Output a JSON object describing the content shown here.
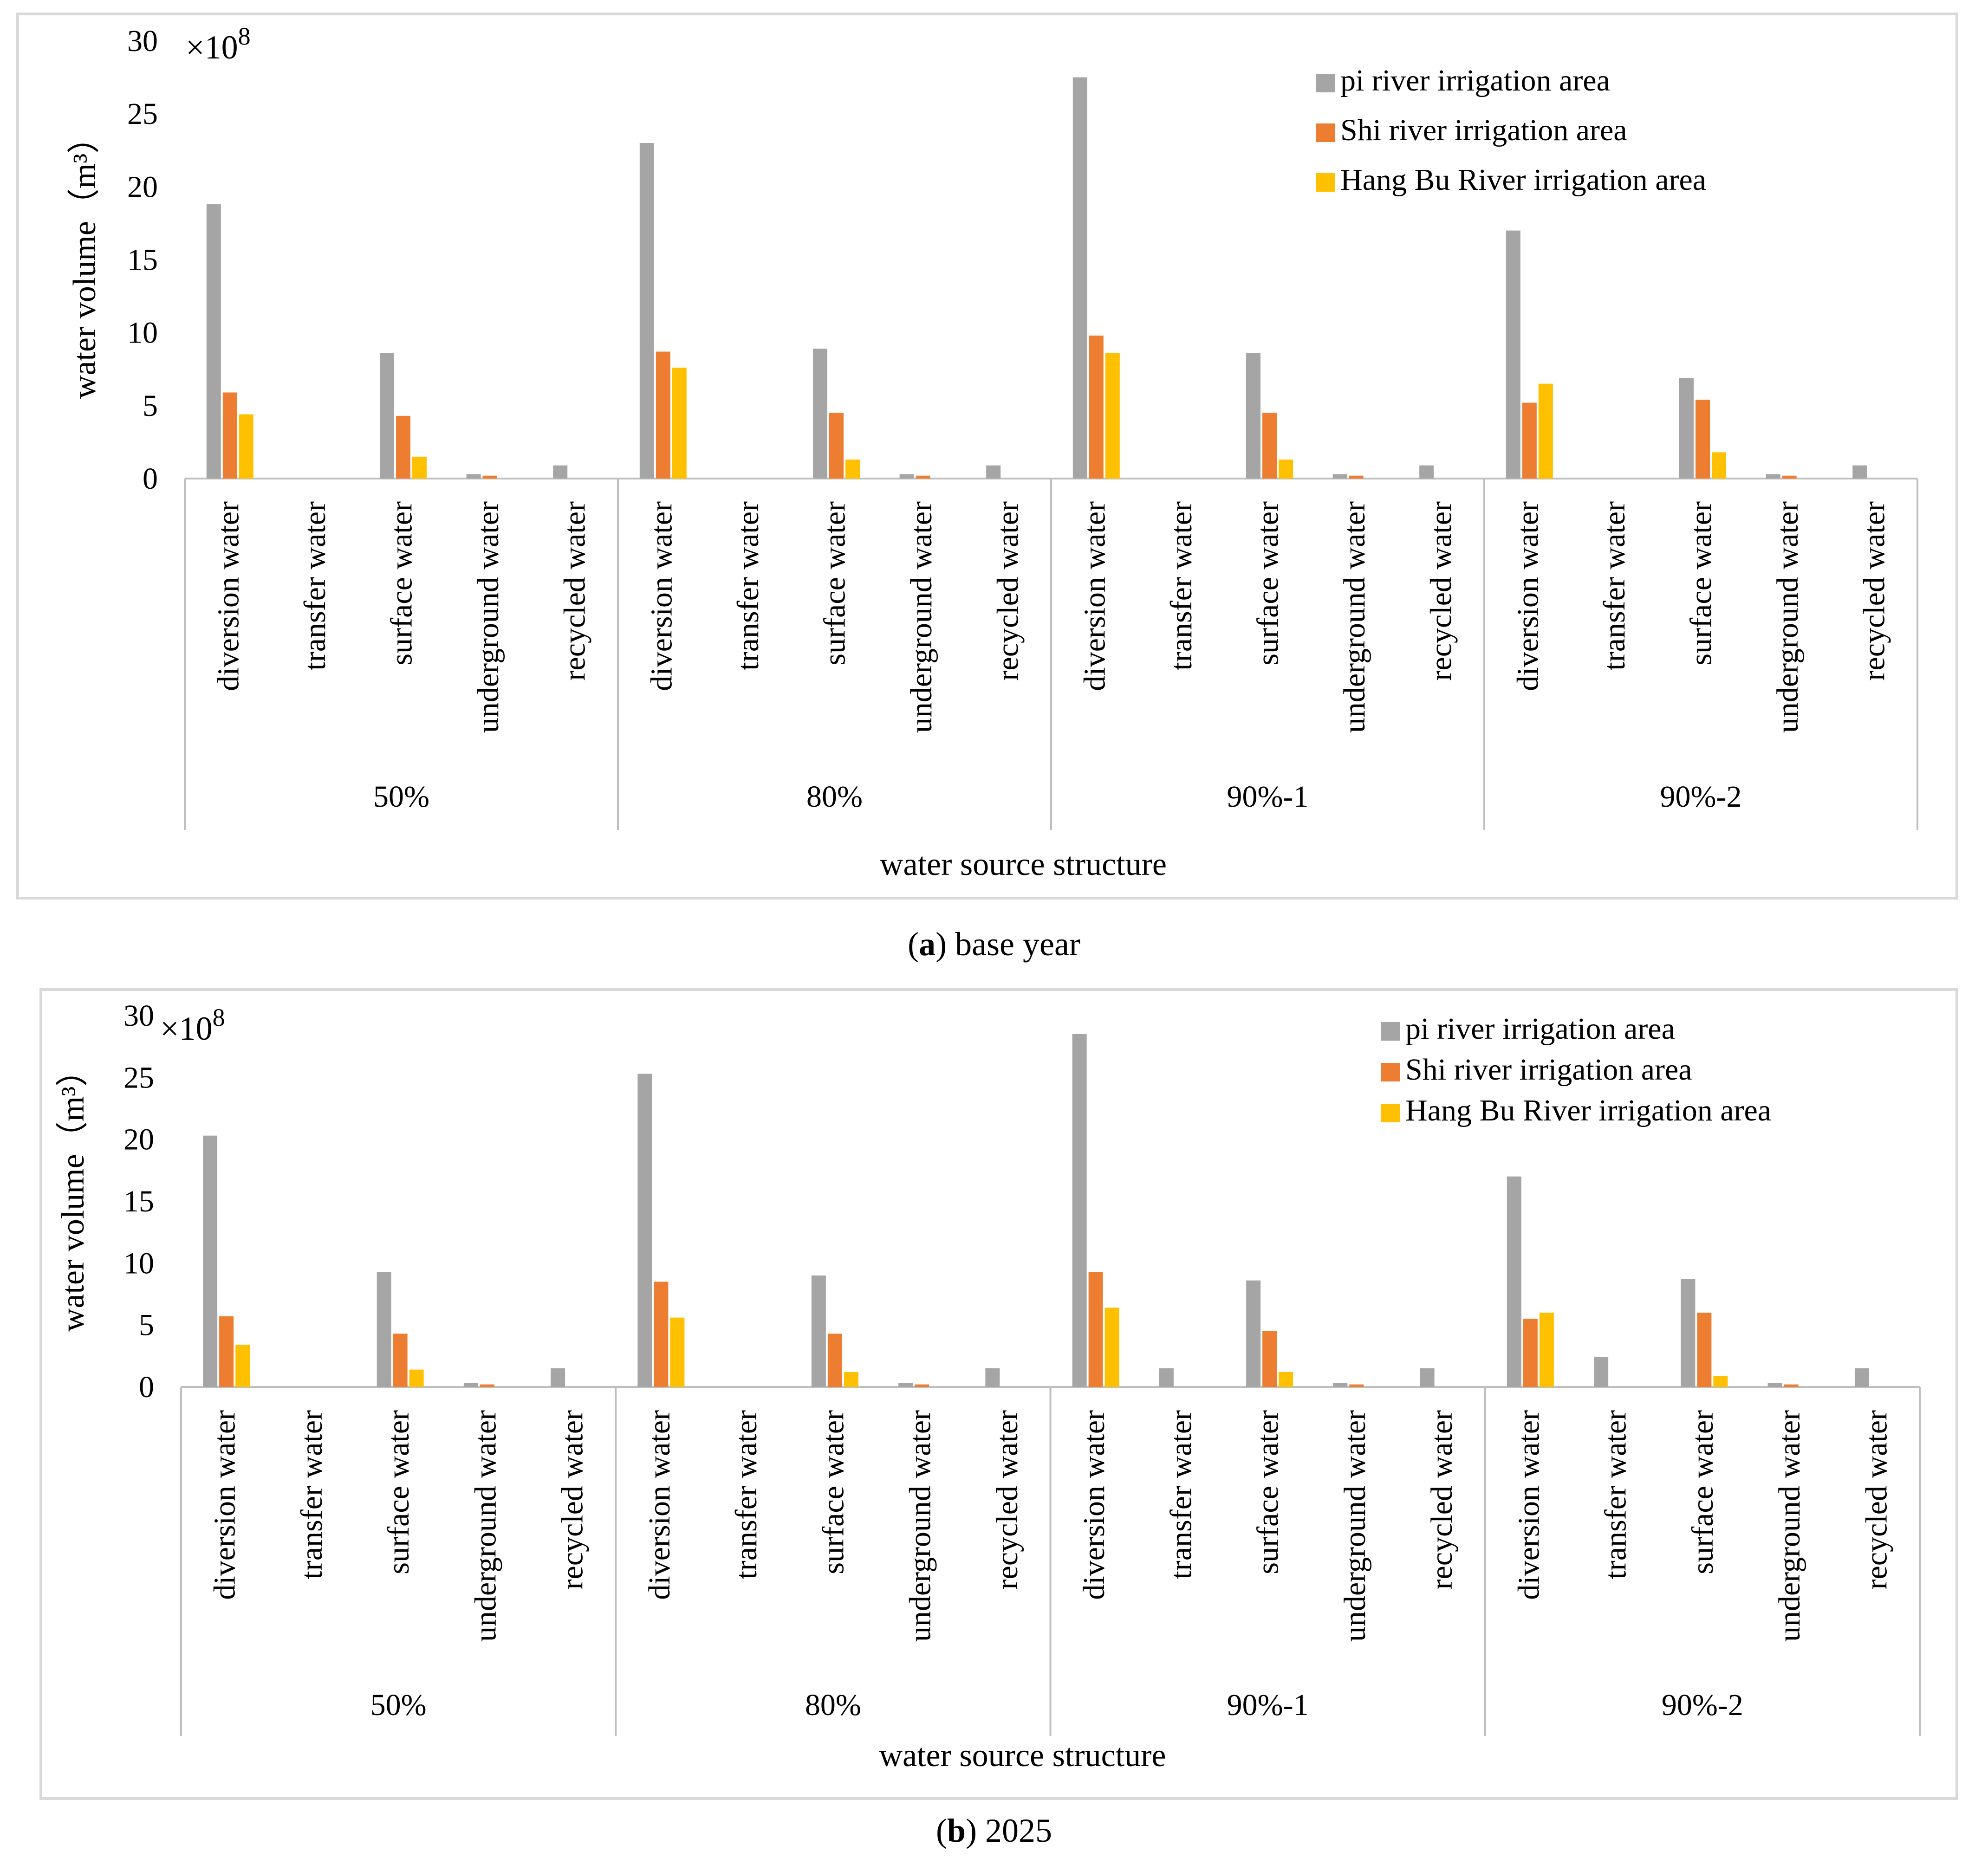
{
  "chart_data": [
    {
      "type": "bar",
      "caption_letter": "a",
      "caption_text": " base year",
      "ylabel": "water volume（m³）",
      "xlabel": "water source structure",
      "multiplier_base": "×10",
      "multiplier_exp": "8",
      "ylim": [
        0,
        30
      ],
      "yticks": [
        0,
        5,
        10,
        15,
        20,
        25,
        30
      ],
      "groups": [
        "50%",
        "80%",
        "90%-1",
        "90%-2"
      ],
      "categories": [
        "diversion water",
        "transfer water",
        "surface water",
        "underground water",
        "recycled water"
      ],
      "legend_position": "top-right",
      "series": [
        {
          "name": "pi river irrigation area",
          "color": "#a5a5a5",
          "values": [
            [
              18.8,
              0,
              8.6,
              0.3,
              0.9
            ],
            [
              23.0,
              0,
              8.9,
              0.3,
              0.9
            ],
            [
              27.5,
              0,
              8.6,
              0.3,
              0.9
            ],
            [
              17.0,
              0,
              6.9,
              0.3,
              0.9
            ]
          ]
        },
        {
          "name": "Shi river irrigation area",
          "color": "#ed7d31",
          "values": [
            [
              5.9,
              0,
              4.3,
              0.2,
              0
            ],
            [
              8.7,
              0,
              4.5,
              0.2,
              0
            ],
            [
              9.8,
              0,
              4.5,
              0.2,
              0
            ],
            [
              5.2,
              0,
              5.4,
              0.2,
              0
            ]
          ]
        },
        {
          "name": "Hang Bu River irrigation area",
          "color": "#ffc000",
          "values": [
            [
              4.4,
              0,
              1.5,
              0,
              0
            ],
            [
              7.6,
              0,
              1.3,
              0,
              0
            ],
            [
              8.6,
              0,
              1.3,
              0,
              0
            ],
            [
              6.5,
              0,
              1.8,
              0,
              0
            ]
          ]
        }
      ]
    },
    {
      "type": "bar",
      "caption_letter": "b",
      "caption_text": " 2025",
      "ylabel": "water volume（m³）",
      "xlabel": "water source structure",
      "multiplier_base": "×10",
      "multiplier_exp": "8",
      "ylim": [
        0,
        30
      ],
      "yticks": [
        0,
        5,
        10,
        15,
        20,
        25,
        30
      ],
      "groups": [
        "50%",
        "80%",
        "90%-1",
        "90%-2"
      ],
      "categories": [
        "diversion water",
        "transfer water",
        "surface water",
        "underground water",
        "recycled water"
      ],
      "legend_position": "top-right",
      "series": [
        {
          "name": "pi river irrigation area",
          "color": "#a5a5a5",
          "values": [
            [
              20.3,
              0,
              9.3,
              0.3,
              1.5
            ],
            [
              25.3,
              0,
              9.0,
              0.3,
              1.5
            ],
            [
              28.5,
              1.5,
              8.6,
              0.3,
              1.5
            ],
            [
              17.0,
              2.4,
              8.7,
              0.3,
              1.5
            ]
          ]
        },
        {
          "name": "Shi river irrigation area",
          "color": "#ed7d31",
          "values": [
            [
              5.7,
              0,
              4.3,
              0.2,
              0
            ],
            [
              8.5,
              0,
              4.3,
              0.2,
              0
            ],
            [
              9.3,
              0,
              4.5,
              0.2,
              0
            ],
            [
              5.5,
              0,
              6.0,
              0.2,
              0
            ]
          ]
        },
        {
          "name": "Hang Bu River irrigation area",
          "color": "#ffc000",
          "values": [
            [
              3.4,
              0,
              1.4,
              0,
              0
            ],
            [
              5.6,
              0,
              1.2,
              0,
              0
            ],
            [
              6.4,
              0,
              1.2,
              0,
              0
            ],
            [
              6.0,
              0,
              0.9,
              0,
              0
            ]
          ]
        }
      ]
    }
  ]
}
